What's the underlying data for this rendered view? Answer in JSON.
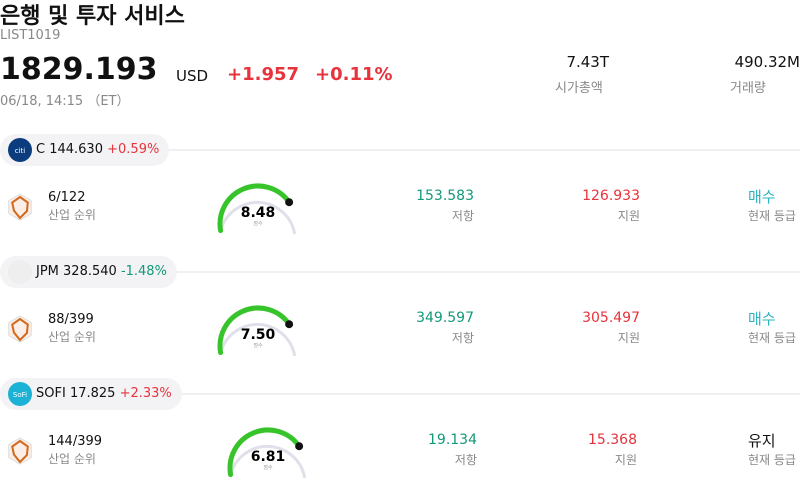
{
  "header": {
    "title": "은행 및 투자 서비스",
    "code": "LIST1019",
    "price": "1829.193",
    "currency": "USD",
    "change": "+1.957",
    "change_pct": "+0.11%",
    "time": "06/18, 14:15 （ET）"
  },
  "stats": [
    {
      "value": "7.43T",
      "label": "시가총액"
    },
    {
      "value": "490.32M",
      "label": "거래량"
    }
  ],
  "stocks": [
    {
      "logo": "citi",
      "logo_color": "#0b3c7d",
      "ticker": "C",
      "price": "144.630",
      "change": "+0.59%",
      "rank": "6/122",
      "rank_label": "산업 순위",
      "score": "8.48",
      "score_label": "점수",
      "resistance": "153.583",
      "resistance_label": "저항",
      "support": "126.933",
      "support_label": "지원",
      "rating": "매수",
      "rating_color": "#2bb3c0",
      "rating_label": "현재 등급"
    },
    {
      "logo_color": "#eeeeee",
      "ticker": "JPM",
      "price": "328.540",
      "change": "-1.48%",
      "rank": "88/399",
      "rank_label": "산업 순위",
      "score": "7.50",
      "score_label": "점수",
      "resistance": "349.597",
      "resistance_label": "저항",
      "support": "305.497",
      "support_label": "지원",
      "rating": "매수",
      "rating_color": "#2bb3c0",
      "rating_label": "현재 등급"
    },
    {
      "logo": "SoFi",
      "logo_color": "#1bb2d6",
      "ticker": "SOFI",
      "price": "17.825",
      "change": "+2.33%",
      "rank": "144/399",
      "rank_label": "산업 순위",
      "score": "6.81",
      "score_label": "점수",
      "resistance": "19.134",
      "resistance_label": "저항",
      "support": "15.368",
      "support_label": "지원",
      "rating": "유지",
      "rating_color": "#111111",
      "rating_label": "현재 등급"
    }
  ]
}
